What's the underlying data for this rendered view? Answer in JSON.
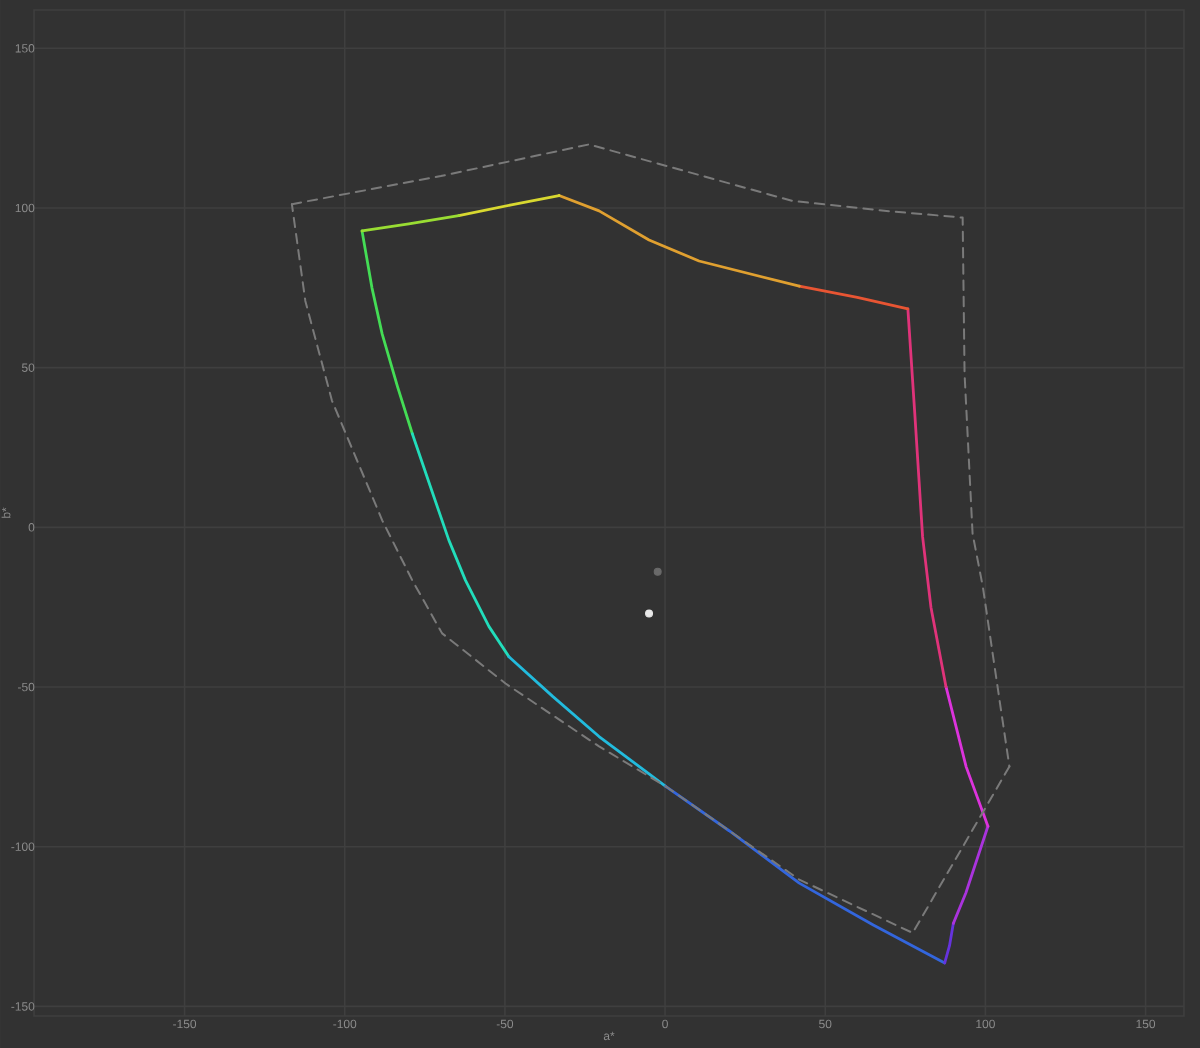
{
  "chart_data": {
    "type": "line",
    "xlabel": "a*",
    "ylabel": "b*",
    "xlim": [
      -197,
      162
    ],
    "ylim": [
      -153,
      162
    ],
    "xticks": [
      -150,
      -100,
      -50,
      0,
      50,
      100,
      150
    ],
    "yticks": [
      -150,
      -100,
      -50,
      0,
      50,
      100,
      150
    ],
    "grid": true,
    "series": [
      {
        "color": "#44dd55",
        "x": [
          -94.6,
          -91.5,
          -88.3,
          -83.5,
          -78.9
        ],
        "values": [
          92.8,
          75,
          60.5,
          44,
          29.3
        ]
      },
      {
        "color": "#22ddbb",
        "x": [
          -78.9,
          -73,
          -67.5,
          -62.3,
          -55,
          -48.75
        ],
        "values": [
          29.3,
          12,
          -4,
          -16.6,
          -31,
          -40.5
        ]
      },
      {
        "color": "#22bbdd",
        "x": [
          -48.75,
          -35,
          -20.6,
          0.2
        ],
        "values": [
          -40.5,
          -53,
          -65.5,
          -81.1
        ]
      },
      {
        "color": "#3366dd",
        "x": [
          0.2,
          20,
          41.9,
          65,
          87.3
        ],
        "values": [
          -81.1,
          -95,
          -111.4,
          -124.5,
          -136.4
        ]
      },
      {
        "color": "#6633dd",
        "x": [
          87.3,
          88.8,
          90
        ],
        "values": [
          -136.4,
          -131,
          -124
        ]
      },
      {
        "color": "#aa33dd",
        "x": [
          90,
          93.9,
          100.8
        ],
        "values": [
          -124,
          -114.5,
          -93.6
        ]
      },
      {
        "color": "#dd33dd",
        "x": [
          100.8,
          94,
          87.7
        ],
        "values": [
          -93.6,
          -75,
          -49.9
        ]
      },
      {
        "color": "#e0337a",
        "x": [
          87.7,
          83,
          80.4,
          78,
          75.8
        ],
        "values": [
          -49.9,
          -25,
          -3,
          35,
          68.4
        ]
      },
      {
        "color": "#e85533",
        "x": [
          75.8,
          60,
          41.9
        ],
        "values": [
          68.4,
          72,
          75.5
        ]
      },
      {
        "color": "#e0a030",
        "x": [
          41.9,
          10.6,
          -5,
          -20.6,
          -33.1
        ],
        "values": [
          75.5,
          83.4,
          90,
          99.1,
          103.9
        ]
      },
      {
        "color": "#d8d830",
        "x": [
          -33.1,
          -48,
          -64.4
        ],
        "values": [
          103.9,
          101,
          97.6
        ]
      },
      {
        "color": "#99dd33",
        "x": [
          -64.4,
          -80,
          -94.6
        ],
        "values": [
          97.6,
          95,
          92.8
        ]
      },
      {
        "color": "#7a7a7a",
        "line_style": "dashed",
        "x": [
          -116.5,
          -70,
          -23.75,
          39.8,
          70,
          92.9,
          93.5,
          96,
          99.2,
          104.4,
          107.5
        ],
        "values": [
          101.2,
          110,
          119.9,
          102.2,
          99,
          97,
          48,
          -2,
          -18.6,
          -54,
          -74.9
        ]
      },
      {
        "color": "#7a7a7a",
        "line_style": "dashed",
        "x": [
          107.5,
          77.3,
          41.9,
          0.2,
          -20.6,
          -49.8,
          -69.6,
          -78.9,
          -88.3,
          -104,
          -112.3,
          -116.5
        ],
        "values": [
          -74.9,
          -127,
          -110.3,
          -81.1,
          -68.6,
          -48.9,
          -33.2,
          -16.6,
          2.2,
          39.7,
          70.9,
          101.2
        ]
      },
      {
        "type": "scatter",
        "marker": "circle",
        "color": "#6a6a6a",
        "x": [
          -2.3
        ],
        "values": [
          -13.9
        ]
      },
      {
        "type": "scatter",
        "marker": "circle",
        "color": "#e8e8e8",
        "x": [
          -5
        ],
        "values": [
          -27
        ]
      }
    ]
  }
}
